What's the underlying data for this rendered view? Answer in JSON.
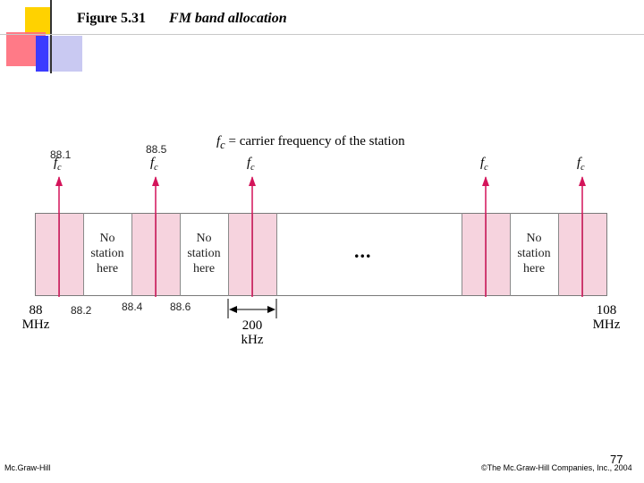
{
  "figure": {
    "number": "Figure 5.31",
    "caption": "FM band allocation"
  },
  "legend": {
    "symbol": "f",
    "subscript": "c",
    "text": "= carrier frequency of the station"
  },
  "band": {
    "no_station_text": [
      "No",
      "station",
      "here"
    ],
    "ellipsis": "..."
  },
  "carrier_labels": [
    "88.1",
    "88.5"
  ],
  "carrier_symbol": {
    "symbol": "f",
    "subscript": "c"
  },
  "bottom_labels": [
    "88.2",
    "88.4",
    "88.6"
  ],
  "axis": {
    "left": {
      "value": "88",
      "unit": "MHz"
    },
    "right": {
      "value": "108",
      "unit": "MHz"
    }
  },
  "spacing": {
    "value": "200",
    "unit": "kHz"
  },
  "footer": {
    "publisher": "Mc.Graw-Hill",
    "copyright": "©The Mc.Graw-Hill Companies, Inc., 2004",
    "page_number": "77"
  },
  "colors": {
    "band_pink": "#f6d3de",
    "arrow_magenta": "#d4145a",
    "deco_yellow": "#ffd200",
    "deco_red": "#ff4b5c",
    "deco_blue": "#3b3bff",
    "deco_lavender": "#c9c9f2"
  }
}
